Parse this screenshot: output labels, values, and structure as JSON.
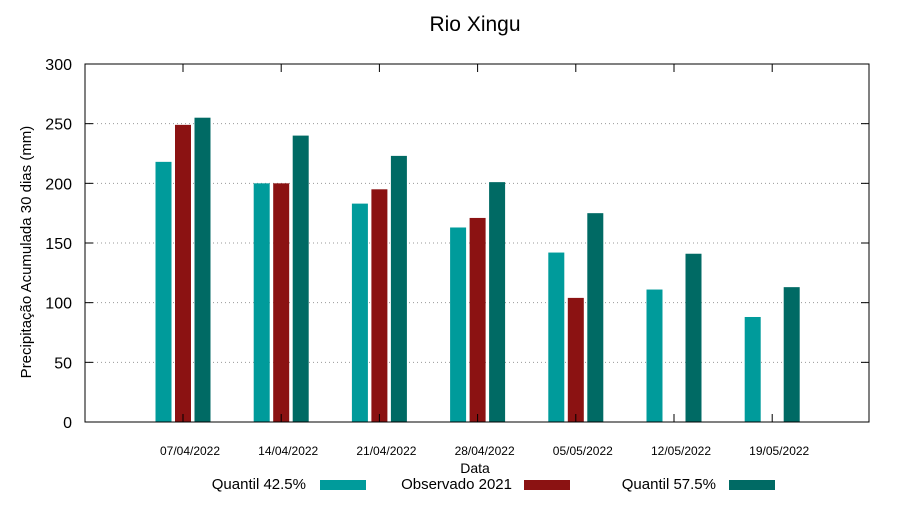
{
  "chart_data": {
    "type": "bar",
    "title": "Rio Xingu",
    "xlabel": "Data",
    "ylabel": "Precipitação Acumulada 30 dias (mm)",
    "ylim": [
      0,
      300
    ],
    "yticks": [
      0,
      50,
      100,
      150,
      200,
      250,
      300
    ],
    "grid": true,
    "legend_position": "bottom",
    "categories": [
      "07/04/2022",
      "14/04/2022",
      "21/04/2022",
      "28/04/2022",
      "05/05/2022",
      "12/05/2022",
      "19/05/2022"
    ],
    "series": [
      {
        "name": "Quantil 42.5%",
        "color": "#009b9b",
        "values": [
          218,
          200,
          183,
          163,
          142,
          111,
          88
        ]
      },
      {
        "name": "Observado 2021",
        "color": "#8b1212",
        "values": [
          249,
          200,
          195,
          171,
          104,
          null,
          null
        ]
      },
      {
        "name": "Quantil 57.5%",
        "color": "#006a64",
        "values": [
          255,
          240,
          223,
          201,
          175,
          141,
          113
        ]
      }
    ]
  }
}
